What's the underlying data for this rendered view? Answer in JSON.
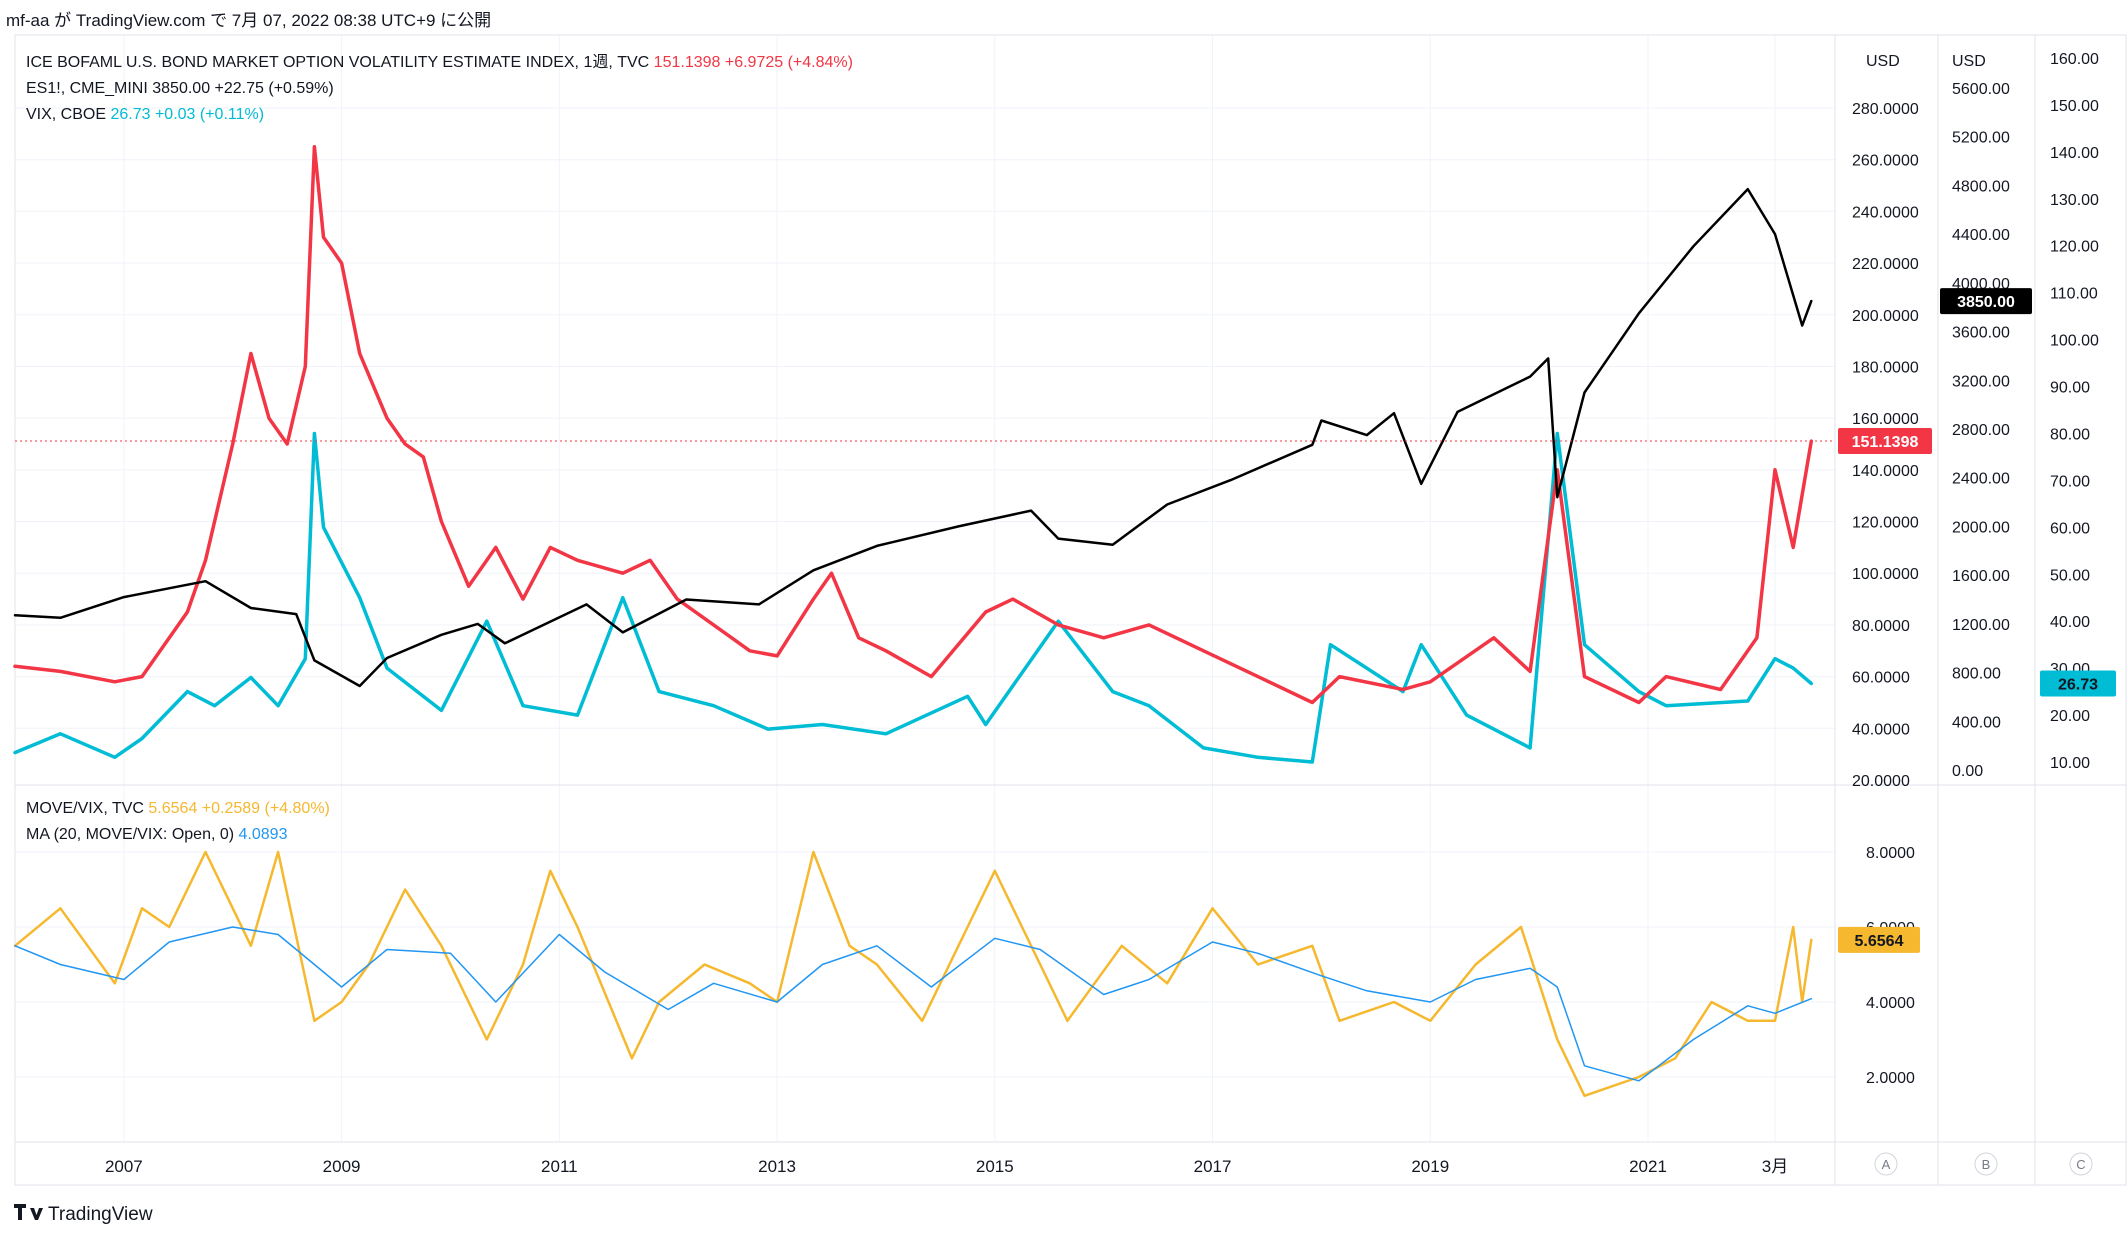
{
  "header": {
    "publish_line": "mf-aa が TradingView.com で 7月 07, 2022 08:38 UTC+9 に公開"
  },
  "legend_top": [
    {
      "name": "ICE BOFAML U.S. BOND MARKET OPTION VOLATILITY ESTIMATE INDEX, 1週, TVC",
      "value": "151.1398",
      "change": "+6.9725 (+4.84%)",
      "color": "#f23645"
    },
    {
      "name": "ES1!, CME_MINI",
      "value": "3850.00",
      "change": "+22.75 (+0.59%)",
      "color": "#131722"
    },
    {
      "name": "VIX, CBOE",
      "value": "26.73",
      "change": "+0.03 (+0.11%)",
      "color": "#00bcd4"
    }
  ],
  "legend_bottom": [
    {
      "name": "MOVE/VIX, TVC",
      "value": "5.6564",
      "change": "+0.2589 (+4.80%)",
      "color": "#f5b82e"
    },
    {
      "name": "MA (20, MOVE/VIX: Open, 0)",
      "value": "4.0893",
      "change": "",
      "color": "#2196f3"
    }
  ],
  "axes": {
    "scale_a_currency": "USD",
    "scale_a_ticks": [
      "280.0000",
      "260.0000",
      "240.0000",
      "220.0000",
      "200.0000",
      "180.0000",
      "160.0000",
      "140.0000",
      "120.0000",
      "100.0000",
      "80.0000",
      "60.0000",
      "40.0000",
      "20.0000"
    ],
    "scale_b_currency": "USD",
    "scale_b_ticks": [
      "5600.00",
      "5200.00",
      "4800.00",
      "4400.00",
      "4000.00",
      "3600.00",
      "3200.00",
      "2800.00",
      "2400.00",
      "2000.00",
      "1600.00",
      "1200.00",
      "800.00",
      "400.00",
      "0.00"
    ],
    "scale_c_ticks": [
      "160.00",
      "150.00",
      "140.00",
      "130.00",
      "120.00",
      "110.00",
      "100.00",
      "90.00",
      "80.00",
      "70.00",
      "60.00",
      "50.00",
      "40.00",
      "30.00",
      "20.00",
      "10.00"
    ],
    "lower_ticks": [
      "8.0000",
      "6.0000",
      "4.0000",
      "2.0000"
    ],
    "time_labels": [
      "2007",
      "2009",
      "2011",
      "2013",
      "2015",
      "2017",
      "2019",
      "2021",
      "3月"
    ],
    "scale_buttons": [
      "A",
      "B",
      "C"
    ]
  },
  "price_tags": {
    "move": "151.1398",
    "es": "3850.00",
    "vix": "26.73",
    "ratio": "5.6564"
  },
  "footer": {
    "logo_text": "TradingView"
  },
  "colors": {
    "move": "#f23645",
    "es": "#000000",
    "vix": "#00bcd4",
    "ratio": "#f5b82e",
    "ma": "#2196f3",
    "grid": "#f0f3fa",
    "border": "#e0e3eb"
  },
  "chart_data": [
    {
      "type": "line",
      "title": "",
      "x_range": [
        "2006-01",
        "2022-07"
      ],
      "series": [
        {
          "name": "ICE BOFAML U.S. BOND MARKET OPTION VOLATILITY ESTIMATE INDEX, 1週, TVC",
          "axis": "A",
          "points": [
            [
              "2006-01",
              64
            ],
            [
              "2006-06",
              62
            ],
            [
              "2006-12",
              58
            ],
            [
              "2007-03",
              60
            ],
            [
              "2007-08",
              85
            ],
            [
              "2007-10",
              105
            ],
            [
              "2008-01",
              150
            ],
            [
              "2008-03",
              185
            ],
            [
              "2008-05",
              160
            ],
            [
              "2008-07",
              150
            ],
            [
              "2008-09",
              180
            ],
            [
              "2008-10",
              265
            ],
            [
              "2008-11",
              230
            ],
            [
              "2009-01",
              220
            ],
            [
              "2009-03",
              185
            ],
            [
              "2009-06",
              160
            ],
            [
              "2009-08",
              150
            ],
            [
              "2009-10",
              145
            ],
            [
              "2009-12",
              120
            ],
            [
              "2010-03",
              95
            ],
            [
              "2010-06",
              110
            ],
            [
              "2010-09",
              90
            ],
            [
              "2010-12",
              110
            ],
            [
              "2011-03",
              105
            ],
            [
              "2011-08",
              100
            ],
            [
              "2011-11",
              105
            ],
            [
              "2012-02",
              90
            ],
            [
              "2012-06",
              80
            ],
            [
              "2012-10",
              70
            ],
            [
              "2013-01",
              68
            ],
            [
              "2013-05",
              90
            ],
            [
              "2013-07",
              100
            ],
            [
              "2013-10",
              75
            ],
            [
              "2014-01",
              70
            ],
            [
              "2014-06",
              60
            ],
            [
              "2014-12",
              85
            ],
            [
              "2015-03",
              90
            ],
            [
              "2015-08",
              80
            ],
            [
              "2016-01",
              75
            ],
            [
              "2016-06",
              80
            ],
            [
              "2016-12",
              70
            ],
            [
              "2017-06",
              60
            ],
            [
              "2017-12",
              50
            ],
            [
              "2018-03",
              60
            ],
            [
              "2018-10",
              55
            ],
            [
              "2019-01",
              58
            ],
            [
              "2019-08",
              75
            ],
            [
              "2019-12",
              62
            ],
            [
              "2020-03",
              140
            ],
            [
              "2020-06",
              60
            ],
            [
              "2020-12",
              50
            ],
            [
              "2021-03",
              60
            ],
            [
              "2021-09",
              55
            ],
            [
              "2022-01",
              75
            ],
            [
              "2022-03",
              140
            ],
            [
              "2022-05",
              110
            ],
            [
              "2022-07",
              151.1398
            ]
          ]
        },
        {
          "name": "ES1!, CME_MINI",
          "axis": "B",
          "points": [
            [
              "2006-01",
              1270
            ],
            [
              "2006-06",
              1250
            ],
            [
              "2007-01",
              1420
            ],
            [
              "2007-10",
              1550
            ],
            [
              "2008-03",
              1330
            ],
            [
              "2008-08",
              1280
            ],
            [
              "2008-10",
              900
            ],
            [
              "2009-03",
              690
            ],
            [
              "2009-06",
              920
            ],
            [
              "2009-12",
              1110
            ],
            [
              "2010-04",
              1200
            ],
            [
              "2010-07",
              1040
            ],
            [
              "2011-04",
              1360
            ],
            [
              "2011-08",
              1130
            ],
            [
              "2012-03",
              1400
            ],
            [
              "2012-11",
              1360
            ],
            [
              "2013-05",
              1640
            ],
            [
              "2013-12",
              1840
            ],
            [
              "2014-09",
              2000
            ],
            [
              "2015-05",
              2130
            ],
            [
              "2015-08",
              1900
            ],
            [
              "2016-02",
              1850
            ],
            [
              "2016-08",
              2180
            ],
            [
              "2017-03",
              2380
            ],
            [
              "2017-12",
              2670
            ],
            [
              "2018-01",
              2870
            ],
            [
              "2018-06",
              2750
            ],
            [
              "2018-09",
              2930
            ],
            [
              "2018-12",
              2350
            ],
            [
              "2019-04",
              2940
            ],
            [
              "2019-12",
              3230
            ],
            [
              "2020-02",
              3380
            ],
            [
              "2020-03",
              2240
            ],
            [
              "2020-06",
              3100
            ],
            [
              "2020-12",
              3750
            ],
            [
              "2021-06",
              4300
            ],
            [
              "2021-12",
              4770
            ],
            [
              "2022-03",
              4400
            ],
            [
              "2022-06",
              3650
            ],
            [
              "2022-07",
              3850
            ]
          ]
        },
        {
          "name": "VIX, CBOE",
          "axis": "C",
          "points": [
            [
              "2006-01",
              12
            ],
            [
              "2006-06",
              16
            ],
            [
              "2006-12",
              11
            ],
            [
              "2007-03",
              15
            ],
            [
              "2007-08",
              25
            ],
            [
              "2007-11",
              22
            ],
            [
              "2008-03",
              28
            ],
            [
              "2008-06",
              22
            ],
            [
              "2008-09",
              32
            ],
            [
              "2008-10",
              80
            ],
            [
              "2008-11",
              60
            ],
            [
              "2009-03",
              45
            ],
            [
              "2009-06",
              30
            ],
            [
              "2009-12",
              21
            ],
            [
              "2010-05",
              40
            ],
            [
              "2010-09",
              22
            ],
            [
              "2011-03",
              20
            ],
            [
              "2011-08",
              45
            ],
            [
              "2011-12",
              25
            ],
            [
              "2012-06",
              22
            ],
            [
              "2012-12",
              17
            ],
            [
              "2013-06",
              18
            ],
            [
              "2014-01",
              16
            ],
            [
              "2014-10",
              24
            ],
            [
              "2014-12",
              18
            ],
            [
              "2015-08",
              40
            ],
            [
              "2016-02",
              25
            ],
            [
              "2016-06",
              22
            ],
            [
              "2016-12",
              13
            ],
            [
              "2017-06",
              11
            ],
            [
              "2017-12",
              10
            ],
            [
              "2018-02",
              35
            ],
            [
              "2018-10",
              25
            ],
            [
              "2018-12",
              35
            ],
            [
              "2019-05",
              20
            ],
            [
              "2019-12",
              13
            ],
            [
              "2020-03",
              80
            ],
            [
              "2020-06",
              35
            ],
            [
              "2020-12",
              25
            ],
            [
              "2021-03",
              22
            ],
            [
              "2021-12",
              23
            ],
            [
              "2022-03",
              32
            ],
            [
              "2022-05",
              30
            ],
            [
              "2022-07",
              26.73
            ]
          ]
        },
        {
          "name": "MOVE/VIX, TVC",
          "axis": "lower",
          "points": [
            [
              "2006-01",
              5.5
            ],
            [
              "2006-06",
              6.5
            ],
            [
              "2006-12",
              4.5
            ],
            [
              "2007-03",
              6.5
            ],
            [
              "2007-06",
              6
            ],
            [
              "2007-10",
              8
            ],
            [
              "2008-03",
              5.5
            ],
            [
              "2008-06",
              8
            ],
            [
              "2008-10",
              3.5
            ],
            [
              "2009-01",
              4
            ],
            [
              "2009-04",
              5
            ],
            [
              "2009-08",
              7
            ],
            [
              "2009-12",
              5.5
            ],
            [
              "2010-05",
              3
            ],
            [
              "2010-09",
              5
            ],
            [
              "2010-12",
              7.5
            ],
            [
              "2011-03",
              6
            ],
            [
              "2011-09",
              2.5
            ],
            [
              "2011-12",
              4
            ],
            [
              "2012-05",
              5
            ],
            [
              "2012-10",
              4.5
            ],
            [
              "2013-01",
              4
            ],
            [
              "2013-05",
              8
            ],
            [
              "2013-09",
              5.5
            ],
            [
              "2013-12",
              5
            ],
            [
              "2014-05",
              3.5
            ],
            [
              "2014-08",
              5
            ],
            [
              "2015-01",
              7.5
            ],
            [
              "2015-06",
              5
            ],
            [
              "2015-09",
              3.5
            ],
            [
              "2016-03",
              5.5
            ],
            [
              "2016-08",
              4.5
            ],
            [
              "2017-01",
              6.5
            ],
            [
              "2017-06",
              5
            ],
            [
              "2017-12",
              5.5
            ],
            [
              "2018-03",
              3.5
            ],
            [
              "2018-09",
              4
            ],
            [
              "2019-01",
              3.5
            ],
            [
              "2019-06",
              5
            ],
            [
              "2019-11",
              6
            ],
            [
              "2020-03",
              3
            ],
            [
              "2020-06",
              1.5
            ],
            [
              "2020-12",
              2
            ],
            [
              "2021-04",
              2.5
            ],
            [
              "2021-08",
              4
            ],
            [
              "2021-12",
              3.5
            ],
            [
              "2022-03",
              3.5
            ],
            [
              "2022-05",
              6
            ],
            [
              "2022-06",
              4
            ],
            [
              "2022-07",
              5.6564
            ]
          ]
        },
        {
          "name": "MA (20, MOVE/VIX: Open, 0)",
          "axis": "lower",
          "points": [
            [
              "2006-01",
              5.5
            ],
            [
              "2006-06",
              5.0
            ],
            [
              "2007-01",
              4.6
            ],
            [
              "2007-06",
              5.6
            ],
            [
              "2008-01",
              6.0
            ],
            [
              "2008-06",
              5.8
            ],
            [
              "2009-01",
              4.4
            ],
            [
              "2009-06",
              5.4
            ],
            [
              "2010-01",
              5.3
            ],
            [
              "2010-06",
              4.0
            ],
            [
              "2011-01",
              5.8
            ],
            [
              "2011-06",
              4.8
            ],
            [
              "2012-01",
              3.8
            ],
            [
              "2012-06",
              4.5
            ],
            [
              "2013-01",
              4.0
            ],
            [
              "2013-06",
              5.0
            ],
            [
              "2013-12",
              5.5
            ],
            [
              "2014-06",
              4.4
            ],
            [
              "2015-01",
              5.7
            ],
            [
              "2015-06",
              5.4
            ],
            [
              "2016-01",
              4.2
            ],
            [
              "2016-06",
              4.6
            ],
            [
              "2017-01",
              5.6
            ],
            [
              "2017-06",
              5.3
            ],
            [
              "2018-01",
              4.7
            ],
            [
              "2018-06",
              4.3
            ],
            [
              "2019-01",
              4.0
            ],
            [
              "2019-06",
              4.6
            ],
            [
              "2019-12",
              4.9
            ],
            [
              "2020-03",
              4.4
            ],
            [
              "2020-06",
              2.3
            ],
            [
              "2020-12",
              1.9
            ],
            [
              "2021-06",
              3.0
            ],
            [
              "2021-12",
              3.9
            ],
            [
              "2022-03",
              3.7
            ],
            [
              "2022-07",
              4.0893
            ]
          ]
        }
      ]
    }
  ]
}
